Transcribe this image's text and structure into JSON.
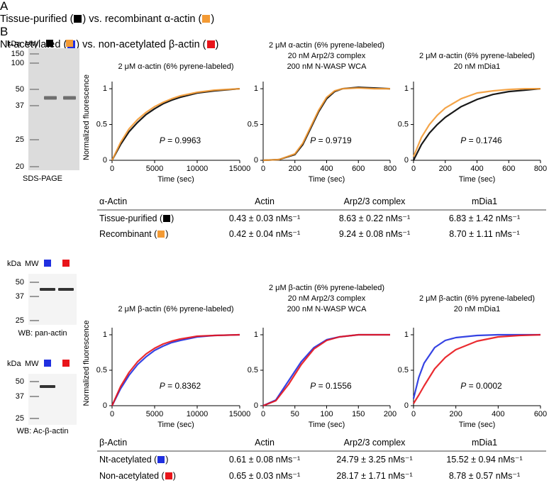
{
  "panels": [
    {
      "label": "A",
      "title_parts": [
        "Tissue-purified (",
        ") vs. recombinant α-actin (",
        ")"
      ],
      "marker_colors": [
        "#000000",
        "#f39a34"
      ],
      "blots": [
        {
          "kda": "kDa",
          "mw": "MW",
          "ladder": [
            150,
            100,
            50,
            37,
            25,
            20
          ],
          "caption": "SDS-PAGE"
        }
      ],
      "table": {
        "header": [
          "α-Actin",
          "Actin",
          "Arp2/3 complex",
          "mDia1"
        ],
        "rows": [
          {
            "label_parts": [
              "Tissue-purified (",
              ")"
            ],
            "cells": [
              "0.43 ± 0.03 nMs⁻¹",
              "8.63 ± 0.22 nMs⁻¹",
              "6.83 ± 1.42 nMs⁻¹"
            ]
          },
          {
            "label_parts": [
              "Recombinant (",
              ")"
            ],
            "cells": [
              "0.42 ± 0.04 nMs⁻¹",
              "9.24 ± 0.08 nMs⁻¹",
              "8.70 ± 1.11 nMs⁻¹"
            ]
          }
        ]
      }
    },
    {
      "label": "B",
      "title_parts": [
        "Nt-acetylated (",
        ") vs. non-acetylated β-actin (",
        ")"
      ],
      "marker_colors": [
        "#1f2fe0",
        "#e8141a"
      ],
      "blots": [
        {
          "kda": "kDa",
          "mw": "MW",
          "ladder": [
            50,
            37,
            25
          ],
          "caption": "WB: pan-actin"
        },
        {
          "kda": "kDa",
          "mw": "MW",
          "ladder": [
            50,
            37,
            25
          ],
          "caption": "WB: Ac-β-actin"
        }
      ],
      "table": {
        "header": [
          "β-Actin",
          "Actin",
          "Arp2/3 complex",
          "mDia1"
        ],
        "rows": [
          {
            "label_parts": [
              "Nt-acetylated (",
              ")"
            ],
            "cells": [
              "0.61 ± 0.08 nMs⁻¹",
              "24.79 ± 3.25 nMs⁻¹",
              "15.52 ± 0.94 nMs⁻¹"
            ]
          },
          {
            "label_parts": [
              "Non-acetylated (",
              ")"
            ],
            "cells": [
              "0.65 ± 0.03 nMs⁻¹",
              "28.17 ± 1.71 nMs⁻¹",
              "8.78 ± 0.57 nMs⁻¹"
            ]
          }
        ]
      }
    }
  ],
  "chart_data": [
    {
      "type": "line",
      "title": [
        "2 μM α-actin (6% pyrene-labeled)"
      ],
      "ylabel": "Normalized fluorescence",
      "xlabel": "Time (sec)",
      "p_symbol": "P",
      "p_value": " = 0.9963",
      "x": [
        0,
        1000,
        2000,
        3000,
        4000,
        5000,
        6000,
        7000,
        8000,
        10000,
        12000,
        15000
      ],
      "xlim": [
        0,
        15000
      ],
      "xticks": [
        0,
        5000,
        10000,
        15000
      ],
      "ylim": [
        0,
        1.1
      ],
      "yticks": [
        0,
        0.5,
        1
      ],
      "series": [
        {
          "color": "#000000",
          "values": [
            0,
            0.22,
            0.4,
            0.53,
            0.64,
            0.72,
            0.79,
            0.84,
            0.88,
            0.94,
            0.97,
            1.0
          ]
        },
        {
          "color": "#f39a34",
          "values": [
            0,
            0.25,
            0.44,
            0.57,
            0.67,
            0.75,
            0.81,
            0.86,
            0.9,
            0.95,
            0.98,
            1.0
          ]
        }
      ]
    },
    {
      "type": "line",
      "title": [
        "2 μM α-actin (6% pyrene-labeled)",
        "20 nM Arp2/3 complex",
        "200 nM N-WASP WCA"
      ],
      "xlabel": "Time (sec)",
      "p_symbol": "P",
      "p_value": " = 0.9719",
      "x": [
        0,
        100,
        200,
        250,
        300,
        350,
        400,
        450,
        500,
        600,
        700,
        800
      ],
      "xlim": [
        0,
        800
      ],
      "xticks": [
        0,
        200,
        400,
        600,
        800
      ],
      "ylim": [
        0,
        1.1
      ],
      "yticks": [
        0,
        0.5,
        1
      ],
      "series": [
        {
          "color": "#000000",
          "values": [
            0,
            0.01,
            0.08,
            0.22,
            0.45,
            0.68,
            0.86,
            0.96,
            1.0,
            1.02,
            1.01,
            1.0
          ]
        },
        {
          "color": "#f39a34",
          "values": [
            0,
            0.01,
            0.09,
            0.24,
            0.47,
            0.7,
            0.88,
            0.97,
            1.0,
            1.01,
            1.0,
            1.0
          ]
        }
      ]
    },
    {
      "type": "line",
      "title": [
        "2 μM α-actin (6% pyrene-labeled)",
        "20 nM mDia1"
      ],
      "xlabel": "Time (sec)",
      "p_symbol": "P",
      "p_value": " = 0.1746",
      "x": [
        0,
        50,
        100,
        150,
        200,
        300,
        400,
        500,
        600,
        700,
        800
      ],
      "xlim": [
        0,
        800
      ],
      "xticks": [
        0,
        200,
        400,
        600,
        800
      ],
      "ylim": [
        0,
        1.1
      ],
      "yticks": [
        0,
        0.5,
        1
      ],
      "series": [
        {
          "color": "#000000",
          "values": [
            0,
            0.22,
            0.38,
            0.5,
            0.6,
            0.75,
            0.85,
            0.92,
            0.96,
            0.98,
            1.0
          ]
        },
        {
          "color": "#f39a34",
          "values": [
            0.05,
            0.32,
            0.5,
            0.63,
            0.73,
            0.86,
            0.94,
            0.97,
            0.99,
            1.0,
            1.0
          ]
        }
      ]
    },
    {
      "type": "line",
      "title": [
        "2 μM β-actin (6% pyrene-labeled)"
      ],
      "ylabel": "Normalized fluorescence",
      "xlabel": "Time (sec)",
      "p_symbol": "P",
      "p_value": " = 0.8362",
      "x": [
        0,
        1000,
        2000,
        3000,
        4000,
        5000,
        6000,
        7000,
        8000,
        10000,
        12000,
        15000
      ],
      "xlim": [
        0,
        15000
      ],
      "xticks": [
        0,
        5000,
        10000,
        15000
      ],
      "ylim": [
        0,
        1.1
      ],
      "yticks": [
        0,
        0.5,
        1
      ],
      "series": [
        {
          "color": "#1f2fe0",
          "values": [
            0,
            0.24,
            0.43,
            0.58,
            0.69,
            0.78,
            0.84,
            0.89,
            0.92,
            0.97,
            0.99,
            1.0
          ]
        },
        {
          "color": "#e8141a",
          "values": [
            0,
            0.27,
            0.47,
            0.62,
            0.73,
            0.81,
            0.87,
            0.91,
            0.94,
            0.98,
            0.99,
            1.0
          ]
        }
      ]
    },
    {
      "type": "line",
      "title": [
        "2 μM β-actin (6% pyrene-labeled)",
        "20 nM Arp2/3 complex",
        "200 nM N-WASP WCA"
      ],
      "xlabel": "Time (sec)",
      "p_symbol": "P",
      "p_value": " = 0.1556",
      "x": [
        0,
        20,
        40,
        60,
        80,
        100,
        120,
        150,
        200
      ],
      "xlim": [
        0,
        200
      ],
      "xticks": [
        0,
        50,
        100,
        150,
        200
      ],
      "ylim": [
        0,
        1.1
      ],
      "yticks": [
        0,
        0.5,
        1
      ],
      "series": [
        {
          "color": "#1f2fe0",
          "values": [
            0,
            0.08,
            0.35,
            0.62,
            0.82,
            0.93,
            0.97,
            1.0,
            1.0
          ]
        },
        {
          "color": "#e8141a",
          "values": [
            0,
            0.07,
            0.3,
            0.58,
            0.8,
            0.92,
            0.97,
            1.0,
            1.0
          ]
        }
      ]
    },
    {
      "type": "line",
      "title": [
        "2 μM β-actin (6% pyrene-labeled)",
        "20 nM mDia1"
      ],
      "xlabel": "Time (sec)",
      "p_symbol": "P",
      "p_value": " = 0.0002",
      "x": [
        0,
        25,
        50,
        100,
        150,
        200,
        300,
        400,
        500,
        600
      ],
      "xlim": [
        0,
        600
      ],
      "xticks": [
        0,
        200,
        400,
        600
      ],
      "ylim": [
        0,
        1.1
      ],
      "yticks": [
        0,
        0.5,
        1
      ],
      "series": [
        {
          "color": "#1f2fe0",
          "values": [
            0.1,
            0.4,
            0.6,
            0.82,
            0.92,
            0.96,
            0.99,
            1.0,
            1.0,
            1.0
          ]
        },
        {
          "color": "#e8141a",
          "values": [
            0.03,
            0.15,
            0.28,
            0.52,
            0.68,
            0.79,
            0.91,
            0.97,
            0.99,
            1.0
          ]
        }
      ]
    }
  ]
}
